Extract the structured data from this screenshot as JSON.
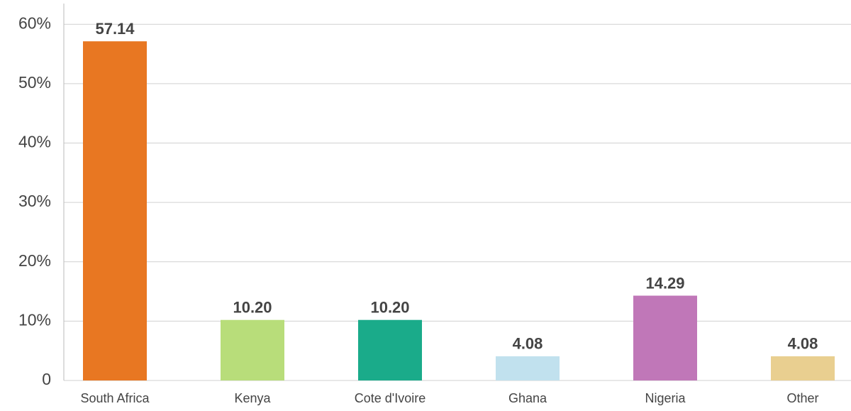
{
  "chart_data": {
    "type": "bar",
    "categories": [
      "South Africa",
      "Kenya",
      "Cote d'Ivoire",
      "Ghana",
      "Nigeria",
      "Other"
    ],
    "values": [
      57.14,
      10.2,
      10.2,
      4.08,
      14.29,
      4.08
    ],
    "value_labels": [
      "57.14",
      "10.20",
      "10.20",
      "4.08",
      "14.29",
      "4.08"
    ],
    "colors": [
      "#e87722",
      "#b8dd7a",
      "#1aab8a",
      "#c1e1ee",
      "#c077b8",
      "#e9cf90"
    ],
    "ylim": [
      0,
      63.5
    ],
    "yticks": [
      0,
      {
        "value": 10,
        "label": "10%"
      },
      {
        "value": 20,
        "label": "20%"
      },
      {
        "value": 30,
        "label": "30%"
      },
      {
        "value": 40,
        "label": "40%"
      },
      {
        "value": 50,
        "label": "50%"
      },
      {
        "value": 60,
        "label": "60%"
      }
    ],
    "grid": true
  }
}
